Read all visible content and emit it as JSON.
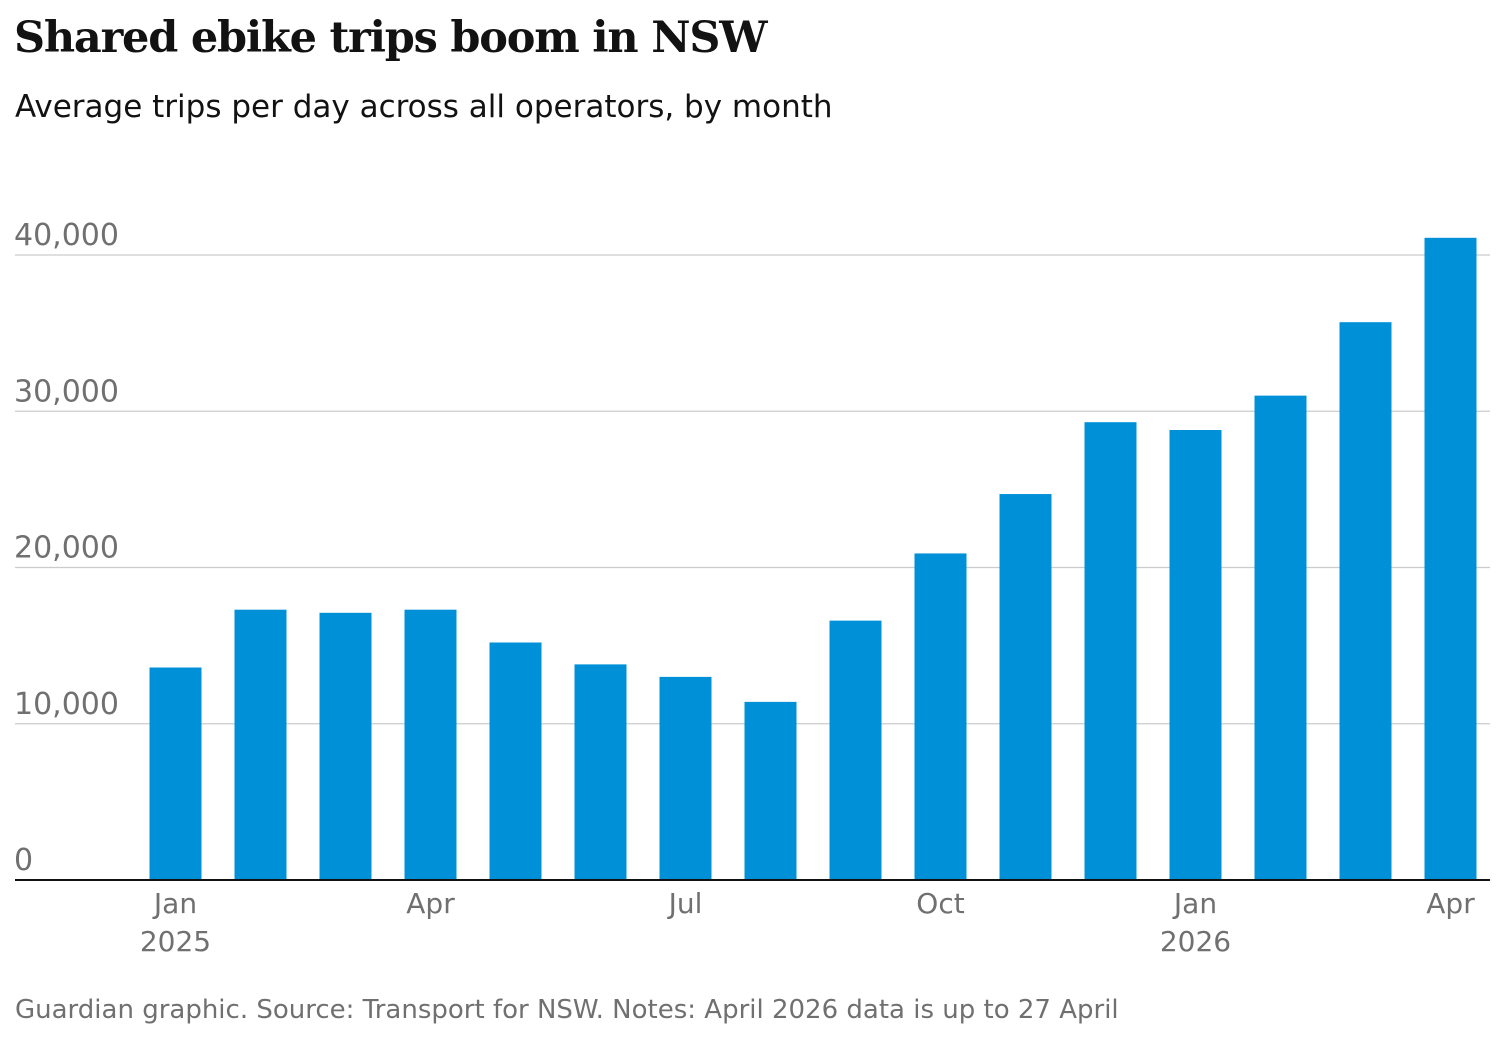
{
  "title": "Shared ebike trips boom in NSW",
  "subtitle": "Average trips per day across all operators, by month",
  "source": "Guardian graphic. Source: Transport for NSW. Notes: April 2026 data is up to 27 April",
  "colors": {
    "bar": "#0090D8",
    "gridline": "#CCCCCC",
    "baseline": "#121212",
    "axis_text": "#707070",
    "source_text": "#707070"
  },
  "chart_data": {
    "type": "bar",
    "title": "Shared ebike trips boom in NSW",
    "subtitle": "Average trips per day across all operators, by month",
    "xlabel": "",
    "ylabel": "",
    "ylim": [
      0,
      40000
    ],
    "y_ticks": [
      0,
      10000,
      20000,
      30000,
      40000
    ],
    "y_tick_labels": [
      "0",
      "10,000",
      "20,000",
      "30,000",
      "40,000"
    ],
    "grid": true,
    "legend": "none",
    "categories": [
      "Jan 2025",
      "Feb 2025",
      "Mar 2025",
      "Apr 2025",
      "May 2025",
      "Jun 2025",
      "Jul 2025",
      "Aug 2025",
      "Sep 2025",
      "Oct 2025",
      "Nov 2025",
      "Dec 2025",
      "Jan 2026",
      "Feb 2026",
      "Mar 2026",
      "Apr 2026"
    ],
    "values": [
      13600,
      17300,
      17100,
      17300,
      15200,
      13800,
      13000,
      11400,
      16600,
      20900,
      24700,
      29300,
      28800,
      31000,
      35700,
      41100
    ],
    "x_tick_labels": [
      {
        "index": 0,
        "label": "Jan",
        "year": "2025"
      },
      {
        "index": 3,
        "label": "Apr",
        "year": ""
      },
      {
        "index": 6,
        "label": "Jul",
        "year": ""
      },
      {
        "index": 9,
        "label": "Oct",
        "year": ""
      },
      {
        "index": 12,
        "label": "Jan",
        "year": "2026"
      },
      {
        "index": 15,
        "label": "Apr",
        "year": ""
      }
    ]
  }
}
